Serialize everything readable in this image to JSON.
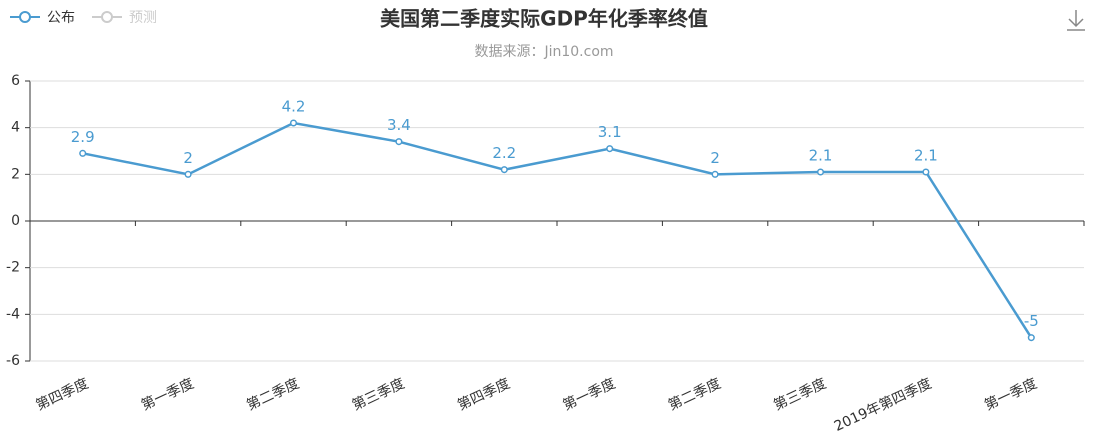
{
  "chart_data": {
    "type": "line",
    "title": "美国第二季度实际GDP年化季率终值",
    "subtitle": "数据来源：Jin10.com",
    "categories": [
      "第四季度",
      "第一季度",
      "第二季度",
      "第三季度",
      "第四季度",
      "第一季度",
      "第二季度",
      "第三季度",
      "2019年第四季度",
      "第一季度"
    ],
    "series": [
      {
        "name": "公布",
        "color": "#4a9bd0",
        "values": [
          2.9,
          2,
          4.2,
          3.4,
          2.2,
          3.1,
          2,
          2.1,
          2.1,
          -5
        ]
      },
      {
        "name": "预测",
        "color": "#cccccc",
        "values": [
          null,
          null,
          null,
          null,
          null,
          null,
          null,
          null,
          null,
          null
        ]
      }
    ],
    "ylim": [
      -6,
      6
    ],
    "yticks": [
      -6,
      -4,
      -2,
      0,
      2,
      4,
      6
    ],
    "grid": true
  }
}
